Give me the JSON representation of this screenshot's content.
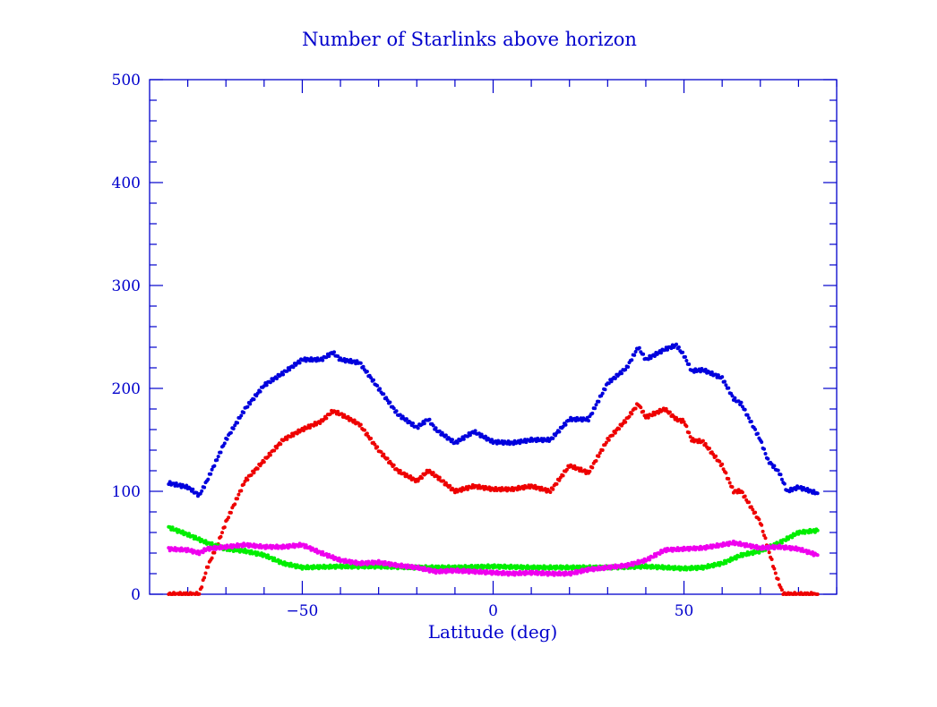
{
  "chart_data": {
    "type": "scatter",
    "title": "Number of Starlinks above horizon",
    "xlabel": "Latitude (deg)",
    "ylabel": "",
    "xlim": [
      -90,
      90
    ],
    "ylim": [
      0,
      500
    ],
    "x_ticks": [
      -50,
      0,
      50
    ],
    "x_tick_labels": [
      "−50",
      "0",
      "50"
    ],
    "y_ticks": [
      0,
      100,
      200,
      300,
      400,
      500
    ],
    "y_tick_labels": [
      "0",
      "100",
      "200",
      "300",
      "400",
      "500"
    ],
    "grid": false,
    "series": [
      {
        "name": "blue",
        "color": "#0000dd",
        "x": [
          -85,
          -80,
          -77,
          -75,
          -70,
          -65,
          -60,
          -55,
          -50,
          -45,
          -42,
          -40,
          -35,
          -30,
          -25,
          -20,
          -17,
          -15,
          -10,
          -5,
          0,
          5,
          10,
          15,
          20,
          25,
          30,
          35,
          38,
          40,
          45,
          48,
          50,
          52,
          55,
          60,
          63,
          65,
          70,
          72,
          75,
          77,
          80,
          85
        ],
        "y": [
          108,
          104,
          96,
          110,
          150,
          180,
          203,
          215,
          228,
          228,
          235,
          228,
          225,
          200,
          175,
          162,
          170,
          160,
          147,
          158,
          148,
          147,
          150,
          150,
          170,
          170,
          205,
          220,
          240,
          228,
          238,
          242,
          232,
          217,
          218,
          210,
          190,
          185,
          150,
          130,
          118,
          100,
          104,
          98
        ]
      },
      {
        "name": "red",
        "color": "#ee0000",
        "x": [
          -85,
          -80,
          -77,
          -75,
          -72,
          -70,
          -65,
          -60,
          -55,
          -50,
          -45,
          -42,
          -40,
          -35,
          -30,
          -25,
          -20,
          -17,
          -15,
          -10,
          -5,
          0,
          5,
          10,
          15,
          20,
          25,
          30,
          35,
          38,
          40,
          45,
          48,
          50,
          52,
          55,
          60,
          63,
          65,
          70,
          72,
          74,
          76,
          80,
          85
        ],
        "y": [
          0,
          0,
          0,
          25,
          50,
          70,
          110,
          130,
          150,
          160,
          168,
          178,
          175,
          165,
          140,
          120,
          110,
          120,
          115,
          100,
          105,
          102,
          102,
          105,
          100,
          125,
          118,
          150,
          170,
          185,
          172,
          180,
          170,
          168,
          150,
          148,
          125,
          100,
          100,
          70,
          45,
          20,
          0,
          0,
          0
        ]
      },
      {
        "name": "green",
        "color": "#00ee00",
        "x": [
          -85,
          -80,
          -75,
          -70,
          -65,
          -60,
          -55,
          -50,
          -40,
          -30,
          -20,
          -10,
          0,
          10,
          20,
          30,
          40,
          50,
          55,
          60,
          65,
          70,
          75,
          80,
          85
        ],
        "y": [
          65,
          58,
          50,
          44,
          42,
          38,
          30,
          26,
          27,
          27,
          26,
          26,
          27,
          26,
          26,
          26,
          27,
          25,
          26,
          30,
          38,
          42,
          50,
          60,
          62
        ]
      },
      {
        "name": "magenta",
        "color": "#ee00ee",
        "x": [
          -85,
          -80,
          -77,
          -75,
          -70,
          -65,
          -60,
          -55,
          -50,
          -45,
          -40,
          -35,
          -30,
          -25,
          -20,
          -15,
          -10,
          -5,
          0,
          5,
          10,
          15,
          20,
          25,
          30,
          35,
          40,
          45,
          50,
          55,
          60,
          63,
          70,
          75,
          80,
          85
        ],
        "y": [
          44,
          43,
          40,
          44,
          46,
          48,
          46,
          46,
          48,
          40,
          33,
          30,
          31,
          28,
          26,
          22,
          23,
          22,
          21,
          20,
          21,
          20,
          20,
          24,
          26,
          28,
          33,
          43,
          44,
          45,
          48,
          50,
          45,
          46,
          44,
          38
        ]
      }
    ]
  }
}
